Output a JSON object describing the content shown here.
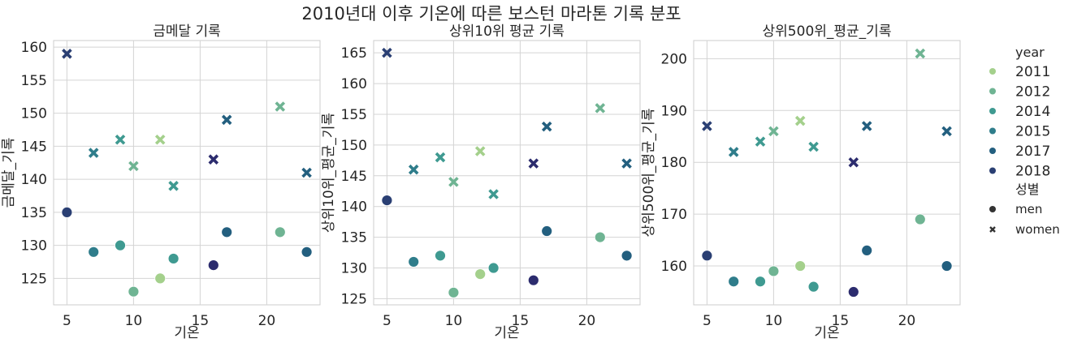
{
  "suptitle": "2010년대 이후 기온에 따른 보스턴 마라톤 기록 분포",
  "legend": {
    "hue_title": "year",
    "hue_entries": [
      {
        "label": "2011",
        "color": "#a4d08c"
      },
      {
        "label": "2012",
        "color": "#6fb493"
      },
      {
        "label": "2014",
        "color": "#3f9a91"
      },
      {
        "label": "2015",
        "color": "#2f7d8b"
      },
      {
        "label": "2017",
        "color": "#235f7f"
      },
      {
        "label": "2018",
        "color": "#2a3f73"
      }
    ],
    "style_title": "성별",
    "style_entries": [
      {
        "label": "men",
        "marker": "circle"
      },
      {
        "label": "women",
        "marker": "x"
      }
    ]
  },
  "chart_data": [
    {
      "type": "scatter",
      "title": "금메달 기록",
      "xlabel": "기온",
      "ylabel": "금메달_기록",
      "xlim": [
        4,
        24
      ],
      "ylim": [
        121,
        161
      ],
      "xticks": [
        5,
        10,
        15,
        20
      ],
      "yticks": [
        125,
        130,
        135,
        140,
        145,
        150,
        155,
        160
      ],
      "grid": true,
      "points": [
        {
          "x": 5,
          "y": 159,
          "marker": "x",
          "color": "#2a3f73"
        },
        {
          "x": 7,
          "y": 144,
          "marker": "x",
          "color": "#2f7d8b"
        },
        {
          "x": 9,
          "y": 146,
          "marker": "x",
          "color": "#3f9a91"
        },
        {
          "x": 10,
          "y": 142,
          "marker": "x",
          "color": "#6fb493"
        },
        {
          "x": 12,
          "y": 146,
          "marker": "x",
          "color": "#a4d08c"
        },
        {
          "x": 13,
          "y": 139,
          "marker": "x",
          "color": "#3f9a91"
        },
        {
          "x": 16,
          "y": 143,
          "marker": "x",
          "color": "#2c2c6e"
        },
        {
          "x": 17,
          "y": 149,
          "marker": "x",
          "color": "#235f7f"
        },
        {
          "x": 21,
          "y": 151,
          "marker": "x",
          "color": "#6fb493"
        },
        {
          "x": 23,
          "y": 141,
          "marker": "x",
          "color": "#235f7f"
        },
        {
          "x": 5,
          "y": 135,
          "marker": "circle",
          "color": "#2a3f73"
        },
        {
          "x": 7,
          "y": 129,
          "marker": "circle",
          "color": "#2f7d8b"
        },
        {
          "x": 9,
          "y": 130,
          "marker": "circle",
          "color": "#3f9a91"
        },
        {
          "x": 10,
          "y": 123,
          "marker": "circle",
          "color": "#6fb493"
        },
        {
          "x": 12,
          "y": 125,
          "marker": "circle",
          "color": "#a4d08c"
        },
        {
          "x": 13,
          "y": 128,
          "marker": "circle",
          "color": "#3f9a91"
        },
        {
          "x": 16,
          "y": 127,
          "marker": "circle",
          "color": "#2c2c6e"
        },
        {
          "x": 17,
          "y": 132,
          "marker": "circle",
          "color": "#235f7f"
        },
        {
          "x": 21,
          "y": 132,
          "marker": "circle",
          "color": "#6fb493"
        },
        {
          "x": 23,
          "y": 129,
          "marker": "circle",
          "color": "#235f7f"
        }
      ]
    },
    {
      "type": "scatter",
      "title": "상위10위 평균 기록",
      "xlabel": "기온",
      "ylabel": "상위10위_평균_기록",
      "xlim": [
        4,
        24
      ],
      "ylim": [
        124,
        167
      ],
      "xticks": [
        5,
        10,
        15,
        20
      ],
      "yticks": [
        125,
        130,
        135,
        140,
        145,
        150,
        155,
        160,
        165
      ],
      "grid": true,
      "points": [
        {
          "x": 5,
          "y": 165,
          "marker": "x",
          "color": "#2a3f73"
        },
        {
          "x": 7,
          "y": 146,
          "marker": "x",
          "color": "#2f7d8b"
        },
        {
          "x": 9,
          "y": 148,
          "marker": "x",
          "color": "#3f9a91"
        },
        {
          "x": 10,
          "y": 144,
          "marker": "x",
          "color": "#6fb493"
        },
        {
          "x": 12,
          "y": 149,
          "marker": "x",
          "color": "#a4d08c"
        },
        {
          "x": 13,
          "y": 142,
          "marker": "x",
          "color": "#3f9a91"
        },
        {
          "x": 16,
          "y": 147,
          "marker": "x",
          "color": "#2c2c6e"
        },
        {
          "x": 17,
          "y": 153,
          "marker": "x",
          "color": "#235f7f"
        },
        {
          "x": 21,
          "y": 156,
          "marker": "x",
          "color": "#6fb493"
        },
        {
          "x": 23,
          "y": 147,
          "marker": "x",
          "color": "#235f7f"
        },
        {
          "x": 5,
          "y": 141,
          "marker": "circle",
          "color": "#2a3f73"
        },
        {
          "x": 7,
          "y": 131,
          "marker": "circle",
          "color": "#2f7d8b"
        },
        {
          "x": 9,
          "y": 132,
          "marker": "circle",
          "color": "#3f9a91"
        },
        {
          "x": 10,
          "y": 126,
          "marker": "circle",
          "color": "#6fb493"
        },
        {
          "x": 12,
          "y": 129,
          "marker": "circle",
          "color": "#a4d08c"
        },
        {
          "x": 13,
          "y": 130,
          "marker": "circle",
          "color": "#3f9a91"
        },
        {
          "x": 16,
          "y": 128,
          "marker": "circle",
          "color": "#2c2c6e"
        },
        {
          "x": 17,
          "y": 136,
          "marker": "circle",
          "color": "#235f7f"
        },
        {
          "x": 21,
          "y": 135,
          "marker": "circle",
          "color": "#6fb493"
        },
        {
          "x": 23,
          "y": 132,
          "marker": "circle",
          "color": "#235f7f"
        }
      ]
    },
    {
      "type": "scatter",
      "title": "상위500위_평균_기록",
      "xlabel": "기온",
      "ylabel": "상위500위_평균_기록",
      "xlim": [
        4,
        24
      ],
      "ylim": [
        152.5,
        203.5
      ],
      "xticks": [
        5,
        10,
        15,
        20
      ],
      "yticks": [
        160,
        170,
        180,
        190,
        200
      ],
      "grid": true,
      "points": [
        {
          "x": 5,
          "y": 187,
          "marker": "x",
          "color": "#2a3f73"
        },
        {
          "x": 7,
          "y": 182,
          "marker": "x",
          "color": "#2f7d8b"
        },
        {
          "x": 9,
          "y": 184,
          "marker": "x",
          "color": "#3f9a91"
        },
        {
          "x": 10,
          "y": 186,
          "marker": "x",
          "color": "#6fb493"
        },
        {
          "x": 12,
          "y": 188,
          "marker": "x",
          "color": "#a4d08c"
        },
        {
          "x": 13,
          "y": 183,
          "marker": "x",
          "color": "#3f9a91"
        },
        {
          "x": 16,
          "y": 180,
          "marker": "x",
          "color": "#2c2c6e"
        },
        {
          "x": 17,
          "y": 187,
          "marker": "x",
          "color": "#235f7f"
        },
        {
          "x": 21,
          "y": 201,
          "marker": "x",
          "color": "#6fb493"
        },
        {
          "x": 23,
          "y": 186,
          "marker": "x",
          "color": "#235f7f"
        },
        {
          "x": 5,
          "y": 162,
          "marker": "circle",
          "color": "#2a3f73"
        },
        {
          "x": 7,
          "y": 157,
          "marker": "circle",
          "color": "#2f7d8b"
        },
        {
          "x": 9,
          "y": 157,
          "marker": "circle",
          "color": "#3f9a91"
        },
        {
          "x": 10,
          "y": 159,
          "marker": "circle",
          "color": "#6fb493"
        },
        {
          "x": 12,
          "y": 160,
          "marker": "circle",
          "color": "#a4d08c"
        },
        {
          "x": 13,
          "y": 156,
          "marker": "circle",
          "color": "#3f9a91"
        },
        {
          "x": 16,
          "y": 155,
          "marker": "circle",
          "color": "#2c2c6e"
        },
        {
          "x": 17,
          "y": 163,
          "marker": "circle",
          "color": "#235f7f"
        },
        {
          "x": 21,
          "y": 169,
          "marker": "circle",
          "color": "#6fb493"
        },
        {
          "x": 23,
          "y": 160,
          "marker": "circle",
          "color": "#235f7f"
        }
      ]
    }
  ]
}
